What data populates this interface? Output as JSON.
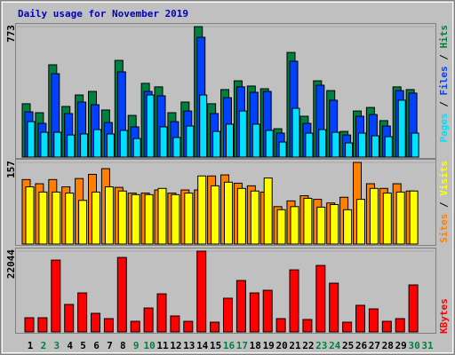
{
  "chart_data": [
    {
      "type": "bar",
      "title": "Daily usage for November 2019",
      "ylim": [
        0,
        773
      ],
      "yticks": [
        773
      ],
      "legend_separator": " / ",
      "series": [
        {
          "name": "Hits",
          "color": "#008040",
          "values": [
            316,
            263,
            547,
            300,
            368,
            389,
            279,
            573,
            247,
            437,
            416,
            263,
            326,
            773,
            316,
            400,
            452,
            421,
            405,
            168,
            620,
            242,
            452,
            394,
            152,
            273,
            294,
            216,
            416,
            400,
            null
          ]
        },
        {
          "name": "Files",
          "color": "#0040ff",
          "values": [
            268,
            200,
            494,
            258,
            326,
            310,
            205,
            505,
            179,
            389,
            363,
            210,
            273,
            710,
            258,
            352,
            416,
            384,
            389,
            142,
            568,
            200,
            426,
            337,
            131,
            242,
            252,
            184,
            394,
            379,
            null
          ]
        },
        {
          "name": "Pages",
          "color": "#00e0ff",
          "values": [
            210,
            147,
            147,
            131,
            137,
            163,
            137,
            158,
            110,
            368,
            179,
            116,
            184,
            368,
            152,
            195,
            273,
            195,
            158,
            89,
            289,
            142,
            163,
            147,
            84,
            142,
            126,
            121,
            337,
            142,
            null
          ]
        }
      ]
    },
    {
      "type": "bar",
      "ylim": [
        0,
        157
      ],
      "yticks": [
        157
      ],
      "legend_separator": " / ",
      "series": [
        {
          "name": "Visits",
          "color": "#ffff00",
          "values": [
            110,
            100,
            100,
            98,
            84,
            100,
            110,
            102,
            95,
            95,
            107,
            95,
            98,
            131,
            112,
            119,
            107,
            102,
            127,
            66,
            72,
            88,
            71,
            76,
            66,
            86,
            107,
            98,
            100,
            102,
            null
          ]
        },
        {
          "name": "Sites",
          "color": "#ff8000",
          "values": [
            124,
            116,
            124,
            110,
            126,
            134,
            145,
            109,
            98,
            98,
            104,
            98,
            104,
            104,
            131,
            133,
            117,
            112,
            100,
            72,
            83,
            93,
            86,
            79,
            90,
            157,
            116,
            107,
            116,
            102,
            null
          ]
        }
      ]
    },
    {
      "type": "bar",
      "ylim": [
        0,
        22044
      ],
      "yticks": [
        22044
      ],
      "categories": [
        "1",
        "2",
        "3",
        "4",
        "5",
        "6",
        "7",
        "8",
        "9",
        "10",
        "11",
        "12",
        "13",
        "14",
        "15",
        "16",
        "17",
        "18",
        "19",
        "20",
        "21",
        "22",
        "23",
        "24",
        "25",
        "26",
        "27",
        "28",
        "29",
        "30",
        "31"
      ],
      "category_colors": [
        "#000000",
        "#008040",
        "#008040",
        "#000000",
        "#000000",
        "#000000",
        "#000000",
        "#000000",
        "#008040",
        "#008040",
        "#000000",
        "#000000",
        "#000000",
        "#000000",
        "#000000",
        "#008040",
        "#008040",
        "#000000",
        "#000000",
        "#000000",
        "#000000",
        "#000000",
        "#008040",
        "#008040",
        "#000000",
        "#000000",
        "#000000",
        "#000000",
        "#000000",
        "#008040",
        "#008040"
      ],
      "series": [
        {
          "name": "KBytes",
          "color": "#ff0000",
          "values": [
            3872,
            3872,
            19600,
            7500,
            10650,
            5080,
            3630,
            20330,
            2900,
            6530,
            10400,
            4360,
            2900,
            22044,
            2660,
            9200,
            14040,
            10650,
            11370,
            3630,
            16940,
            3390,
            18150,
            13310,
            2660,
            7260,
            6290,
            2900,
            3630,
            12830,
            null
          ]
        }
      ]
    }
  ]
}
